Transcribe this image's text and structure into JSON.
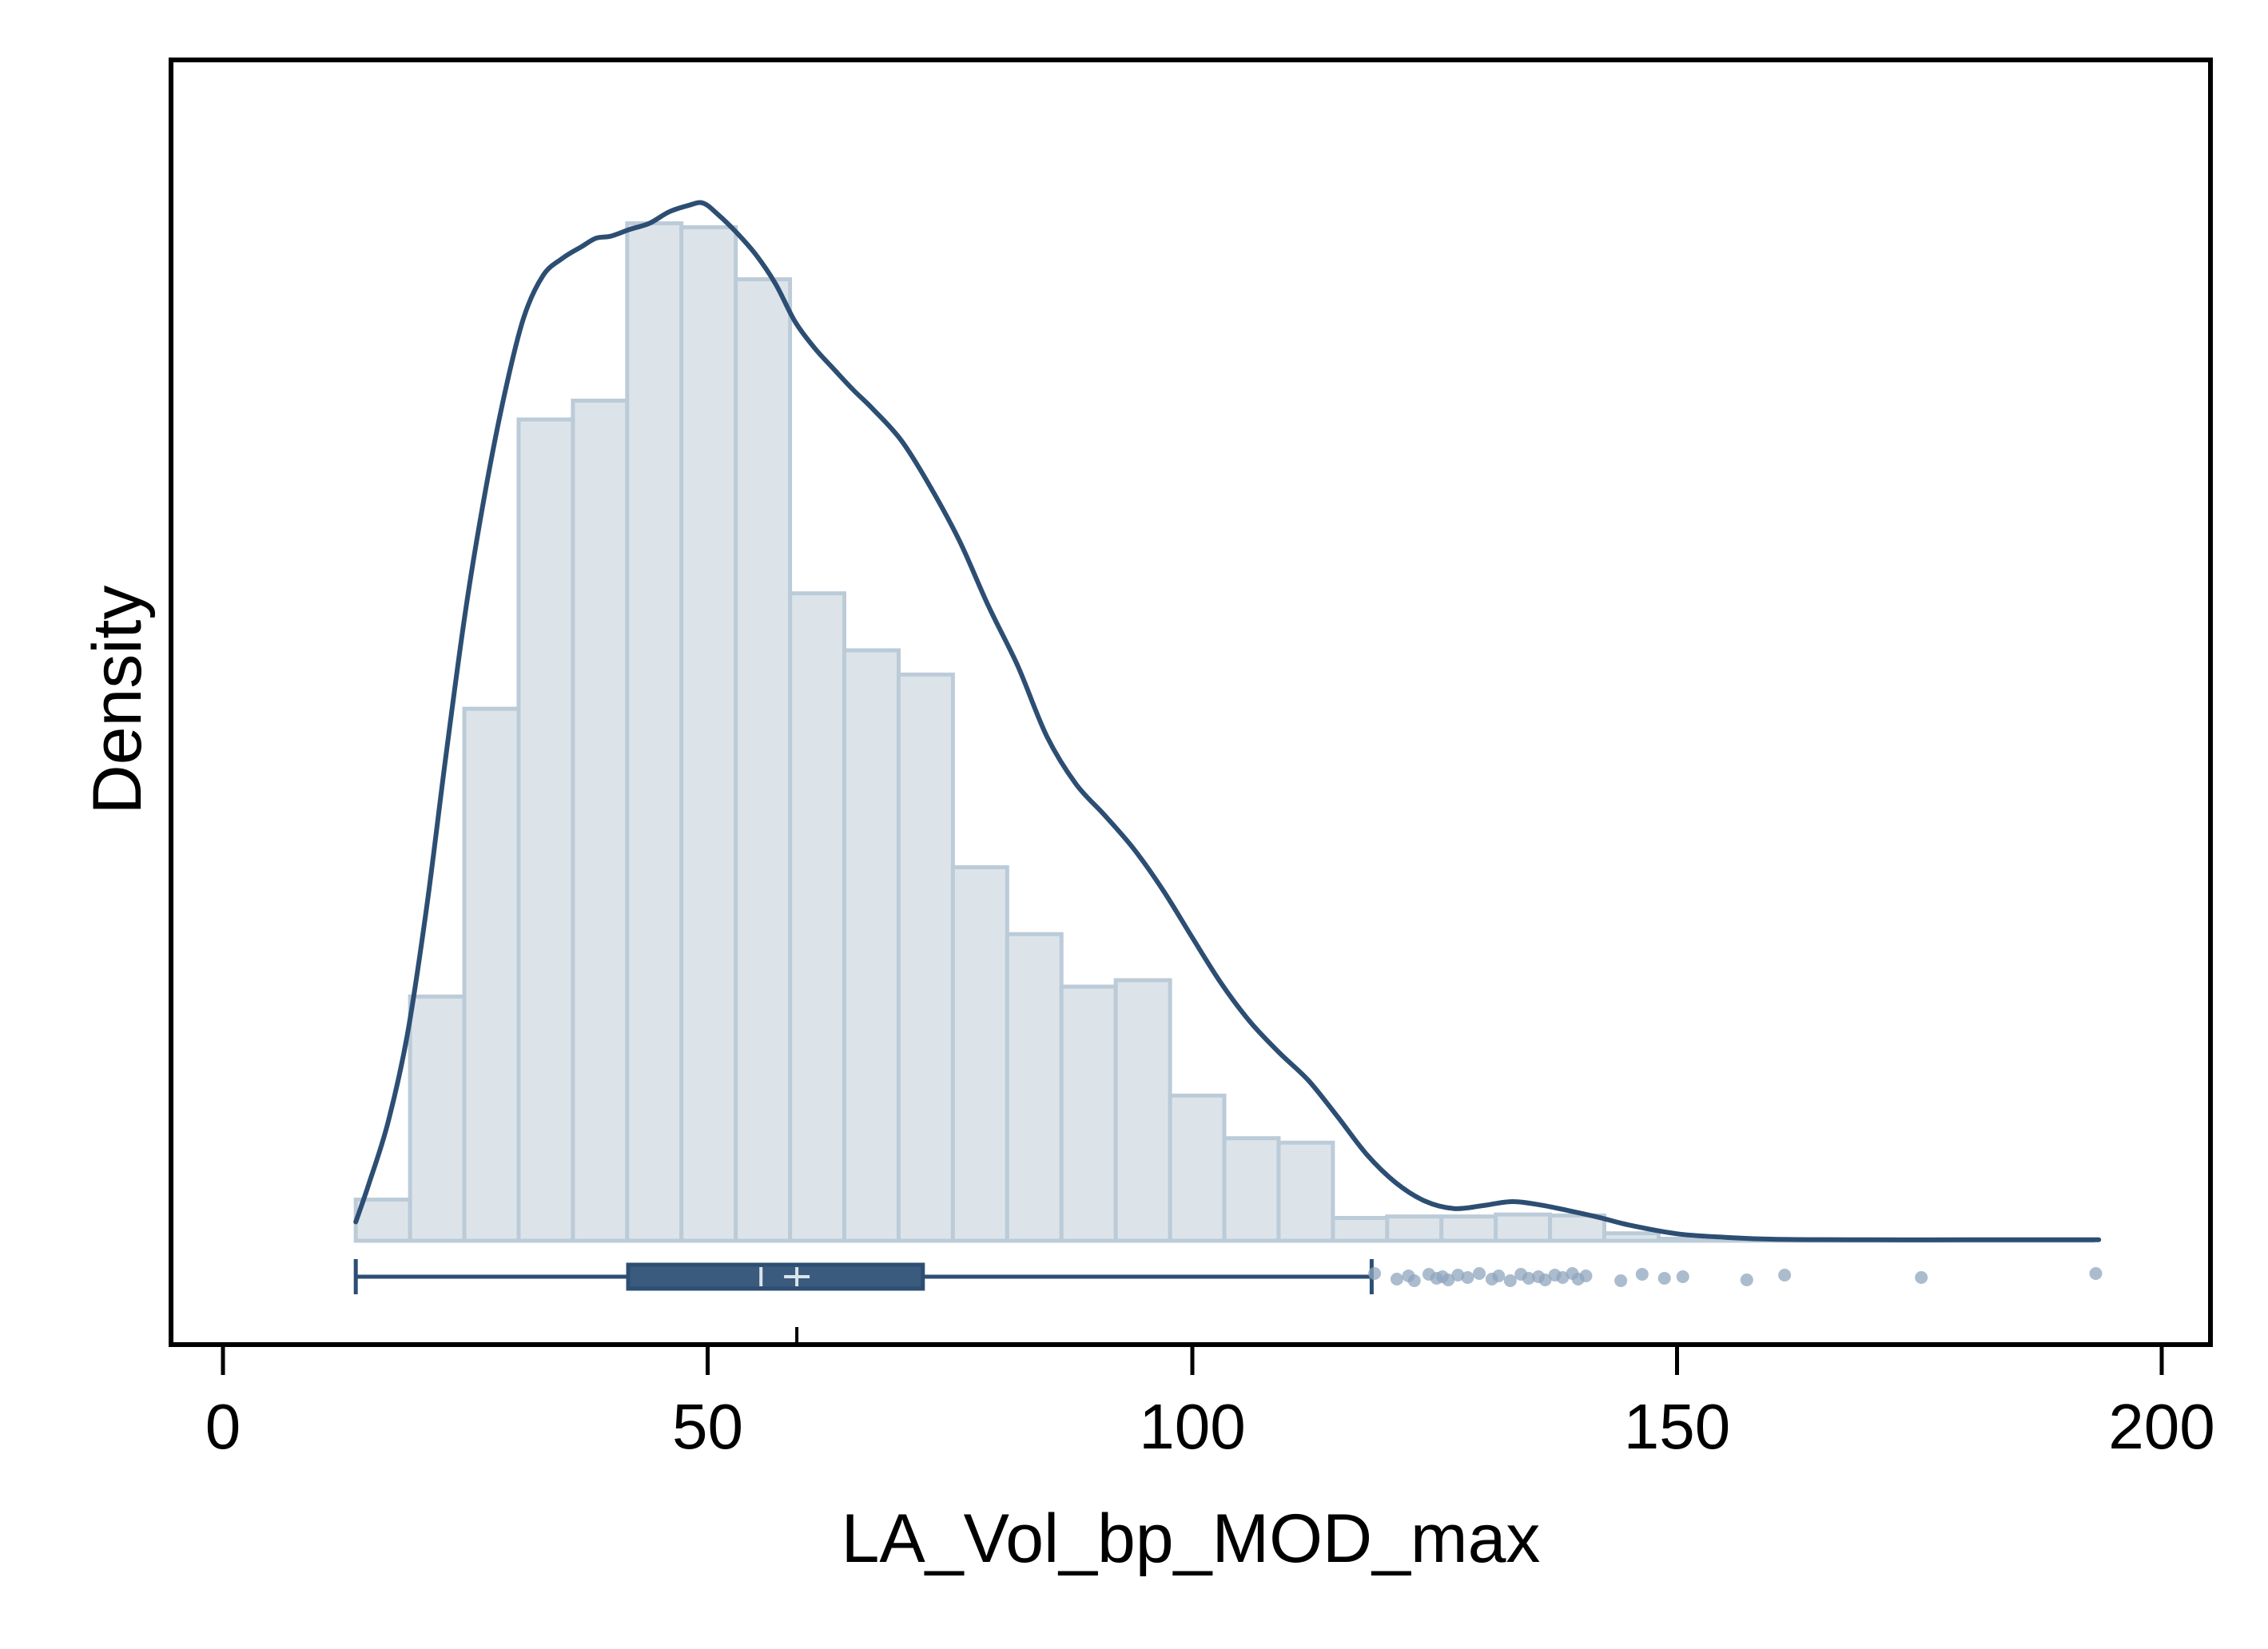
{
  "chart_data": {
    "type": "histogram",
    "xlabel": "LA_Vol_bp_MOD_max",
    "ylabel": "Density",
    "xlim": [
      -2,
      206
    ],
    "x_ticks": [
      {
        "value": 0,
        "label": "0"
      },
      {
        "value": 50,
        "label": "50"
      },
      {
        "value": 100,
        "label": "100"
      },
      {
        "value": 150,
        "label": "150"
      },
      {
        "value": 200,
        "label": "200"
      }
    ],
    "y_ticks_shown": false,
    "histogram": {
      "bin_width": 5.6,
      "bin_starts": [
        13.7,
        19.3,
        24.9,
        30.5,
        36.1,
        41.7,
        47.3,
        52.9,
        58.5,
        64.1,
        69.7,
        75.3,
        80.9,
        86.5,
        92.1,
        97.7,
        103.3,
        108.9,
        114.5,
        120.1,
        125.7,
        131.3,
        136.9,
        142.5,
        148.1,
        153.7,
        159.3,
        164.9,
        170.5,
        176.1,
        181.7,
        187.3
      ],
      "heights": [
        0.00083,
        0.00493,
        0.01074,
        0.01658,
        0.01696,
        0.02054,
        0.02046,
        0.01941,
        0.01307,
        0.01192,
        0.01143,
        0.00754,
        0.00619,
        0.00513,
        0.00526,
        0.00293,
        0.00207,
        0.00198,
        0.00046,
        0.00049,
        0.00049,
        0.00053,
        0.00051,
        0.00015,
        4e-05,
        4e-05,
        2e-05,
        2e-05,
        2e-05,
        2e-05,
        2e-05,
        2e-05
      ]
    },
    "kde": {
      "x": [
        13.7,
        15,
        17,
        19,
        21,
        23,
        25,
        27,
        29,
        31,
        33,
        35,
        37,
        38.5,
        40,
        42,
        44,
        46,
        48,
        49.5,
        51,
        53,
        55,
        57,
        59,
        61,
        63,
        65,
        67,
        70,
        73,
        76,
        79,
        82,
        85,
        88,
        91,
        94,
        97,
        100,
        103,
        106,
        109,
        112,
        115,
        118,
        121,
        124,
        127,
        130,
        133,
        136,
        139,
        142,
        145,
        150,
        155,
        160,
        170,
        180,
        185,
        193.5
      ],
      "y": [
        0.00038,
        0.00112,
        0.00237,
        0.00414,
        0.00671,
        0.00979,
        0.01269,
        0.01506,
        0.01705,
        0.01862,
        0.01948,
        0.01983,
        0.02007,
        0.02024,
        0.02028,
        0.02042,
        0.02054,
        0.02077,
        0.0209,
        0.02095,
        0.02073,
        0.02035,
        0.0199,
        0.01932,
        0.01856,
        0.01803,
        0.0176,
        0.01718,
        0.0168,
        0.01615,
        0.01521,
        0.01412,
        0.0128,
        0.0116,
        0.01018,
        0.00922,
        0.00858,
        0.0079,
        0.00707,
        0.00612,
        0.00519,
        0.00441,
        0.00379,
        0.00323,
        0.0025,
        0.00174,
        0.00117,
        0.0008,
        0.00065,
        0.00071,
        0.00079,
        0.00072,
        0.0006,
        0.00047,
        0.00032,
        0.00014,
        7e-05,
        3e-05,
        2e-05,
        2e-05,
        2e-05,
        2e-05
      ]
    },
    "boxplot": {
      "whisker_low": 13.7,
      "q1": 41.8,
      "median": 55.5,
      "mean": 59.2,
      "q3": 72.2,
      "whisker_high": 118.5,
      "outliers": [
        118.8,
        121.1,
        122.3,
        122.9,
        124.4,
        125.2,
        125.8,
        126.4,
        127.4,
        128.4,
        129.6,
        130.9,
        131.6,
        132.8,
        133.9,
        134.7,
        135.7,
        136.4,
        137.4,
        138.2,
        139.2,
        139.8,
        140.6,
        144.2,
        146.4,
        148.7,
        150.6,
        157.2,
        161.1,
        175.2,
        193.2
      ]
    },
    "colors": {
      "bar_fill": "#dce4ea",
      "bar_stroke": "#bccbd8",
      "line": "#2d4e73",
      "box_fill": "#3a5a7e",
      "box_stroke": "#2d4e73",
      "outlier": "#8fa6bd",
      "frame": "#000000"
    },
    "grid": false,
    "legend": "none"
  }
}
